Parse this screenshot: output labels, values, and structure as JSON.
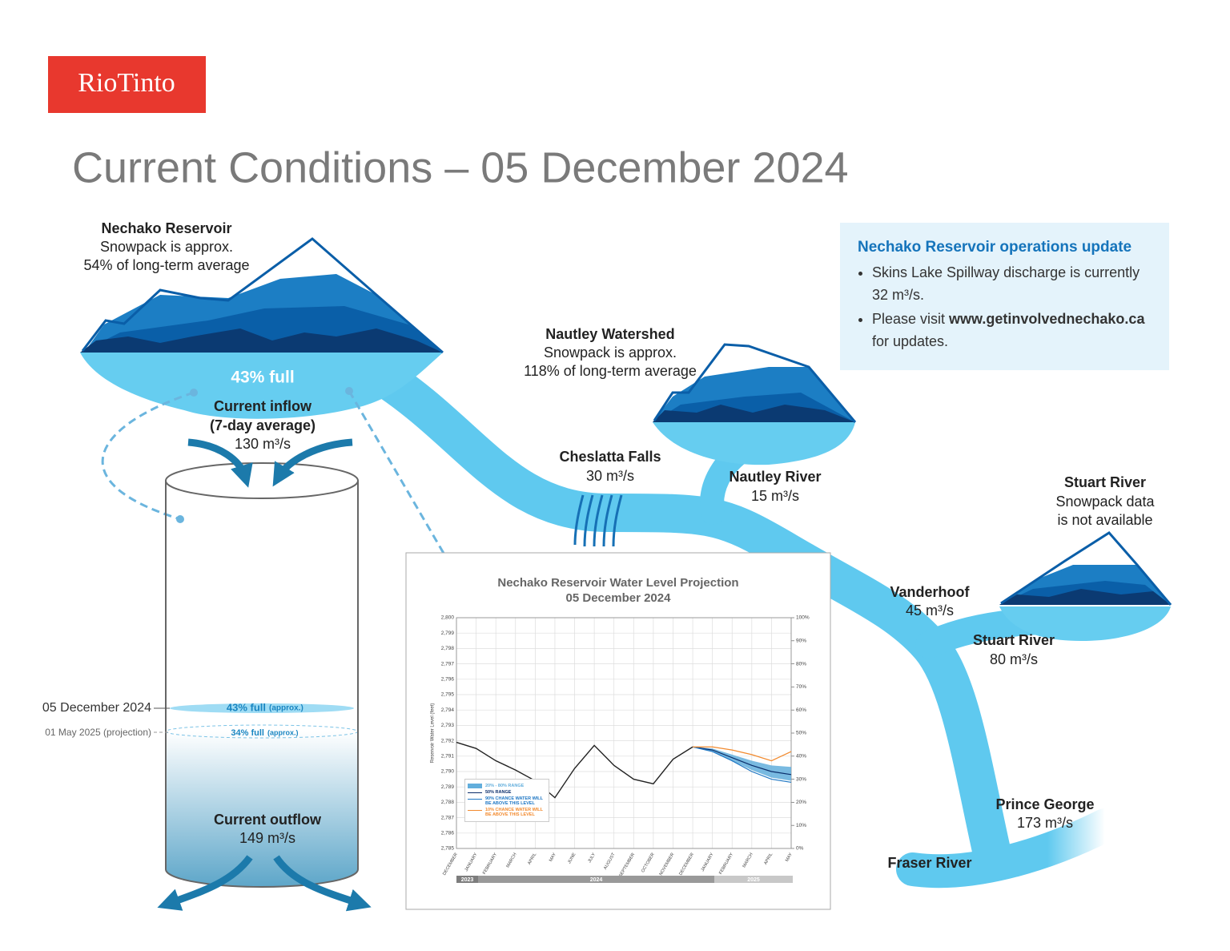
{
  "logo": "RioTinto",
  "title": "Current Conditions – 05 December 2024",
  "nechako_reservoir": {
    "name": "Nechako Reservoir",
    "lines": [
      "Snowpack is approx.",
      "54% of long-term average"
    ],
    "fill": "43% full"
  },
  "inflow": {
    "label": "Current inflow",
    "period": "(7-day average)",
    "value": "130 m³/s"
  },
  "outflow": {
    "label": "Current outflow",
    "value": "149 m³/s"
  },
  "levels": [
    {
      "date": "05 December 2024",
      "level": "43% full",
      "note": "(approx.)"
    },
    {
      "date": "01 May 2025 (projection)",
      "level": "34% full",
      "note": "(approx.)"
    }
  ],
  "nautley_watershed": {
    "name": "Nautley Watershed",
    "lines": [
      "Snowpack is approx.",
      "118% of long-term average"
    ]
  },
  "stuart_watershed": {
    "name": "Stuart River",
    "lines": [
      "Snowpack data",
      "is not available"
    ]
  },
  "flows": [
    {
      "name": "Cheslatta Falls",
      "value": "30 m³/s"
    },
    {
      "name": "Nautley River",
      "value": "15 m³/s"
    },
    {
      "name": "Vanderhoof",
      "value": "45 m³/s"
    },
    {
      "name": "Stuart River",
      "value": "80 m³/s"
    },
    {
      "name": "Prince George",
      "value": "173 m³/s"
    }
  ],
  "fraser": "Fraser River",
  "update": {
    "title": "Nechako Reservoir operations update",
    "bullets": [
      [
        "Skins Lake Spillway discharge is currently 32 m³/s."
      ],
      [
        "Please visit ",
        "www.getinvolvednechako.ca",
        " for updates."
      ]
    ]
  },
  "chart_data": {
    "type": "line",
    "title": "Nechako Reservoir Water Level Projection",
    "subtitle": "05 December 2024",
    "y_label": "Reservoir Water Level (feet)",
    "categories": [
      "DECEMBER",
      "JANUARY",
      "FEBRUARY",
      "MARCH",
      "APRIL",
      "MAY",
      "JUNE",
      "JULY",
      "AUGUST",
      "SEPTEMBER",
      "OCTOBER",
      "NOVEMBER",
      "DECEMBER",
      "JANUARY",
      "FEBRUARY",
      "MARCH",
      "APRIL",
      "MAY"
    ],
    "years": [
      "2023",
      "2024",
      "2025"
    ],
    "ylim": [
      2785,
      2800
    ],
    "yticks": [
      {
        "value": 2785,
        "label": "2,785"
      },
      {
        "value": 2786,
        "label": "2,786"
      },
      {
        "value": 2787,
        "label": "2,787"
      },
      {
        "value": 2788,
        "label": "2,788"
      },
      {
        "value": 2789,
        "label": "2,789"
      },
      {
        "value": 2790,
        "label": "2,790"
      },
      {
        "value": 2791,
        "label": "2,791"
      },
      {
        "value": 2792,
        "label": "2,792"
      },
      {
        "value": 2793,
        "label": "2,793"
      },
      {
        "value": 2794,
        "label": "2,794"
      },
      {
        "value": 2795,
        "label": "2,795"
      },
      {
        "value": 2796,
        "label": "2,796"
      },
      {
        "value": 2797,
        "label": "2,797"
      },
      {
        "value": 2798,
        "label": "2,798"
      },
      {
        "value": 2799,
        "label": "2,799"
      },
      {
        "value": 2800,
        "label": "2,800"
      }
    ],
    "y2lim": [
      0,
      100
    ],
    "y2ticks": [
      {
        "value": 0,
        "label": "0%"
      },
      {
        "value": 10,
        "label": "10%"
      },
      {
        "value": 20,
        "label": "20%"
      },
      {
        "value": 30,
        "label": "30%"
      },
      {
        "value": 40,
        "label": "40%"
      },
      {
        "value": 50,
        "label": "50%"
      },
      {
        "value": 60,
        "label": "60%"
      },
      {
        "value": 70,
        "label": "70%"
      },
      {
        "value": 80,
        "label": "80%"
      },
      {
        "value": 90,
        "label": "90%"
      },
      {
        "value": 100,
        "label": "100%"
      }
    ],
    "grid": true,
    "legend": "lower left",
    "band": {
      "name": "20% - 80% RANGE",
      "color": "#62aedc",
      "low": [
        null,
        null,
        null,
        null,
        null,
        null,
        null,
        null,
        null,
        null,
        null,
        null,
        2791.6,
        2791.3,
        2790.7,
        2790.1,
        2789.6,
        2789.4
      ],
      "high": [
        null,
        null,
        null,
        null,
        null,
        null,
        null,
        null,
        null,
        null,
        null,
        null,
        2791.6,
        2791.5,
        2791.1,
        2790.7,
        2790.4,
        2790.3
      ]
    },
    "series": [
      {
        "color": "#222222",
        "values": [
          2791.9,
          2791.5,
          2790.7,
          2790.1,
          2789.4,
          2788.3,
          2790.2,
          2791.7,
          2790.4,
          2789.5,
          2789.2,
          2790.8,
          2791.6,
          null,
          null,
          null,
          null,
          null
        ]
      },
      {
        "name": "50% RANGE",
        "color": "#0b2e6b",
        "values": [
          null,
          null,
          null,
          null,
          null,
          null,
          null,
          null,
          null,
          null,
          null,
          null,
          2791.6,
          2791.4,
          2790.9,
          2790.4,
          2790.0,
          2789.8
        ]
      },
      {
        "name": "90% CHANCE WATER WILL BE ABOVE THIS LEVEL",
        "color": "#1f77c4",
        "values": [
          null,
          null,
          null,
          null,
          null,
          null,
          null,
          null,
          null,
          null,
          null,
          null,
          2791.6,
          2791.3,
          2790.7,
          2790.0,
          2789.5,
          2789.3
        ]
      },
      {
        "name": "10% CHANCE WATER WILL BE ABOVE THIS LEVEL",
        "color": "#f28a2e",
        "values": [
          null,
          null,
          null,
          null,
          null,
          null,
          null,
          null,
          null,
          null,
          null,
          null,
          2791.6,
          2791.6,
          2791.4,
          2791.1,
          2790.7,
          2791.3
        ]
      }
    ]
  }
}
